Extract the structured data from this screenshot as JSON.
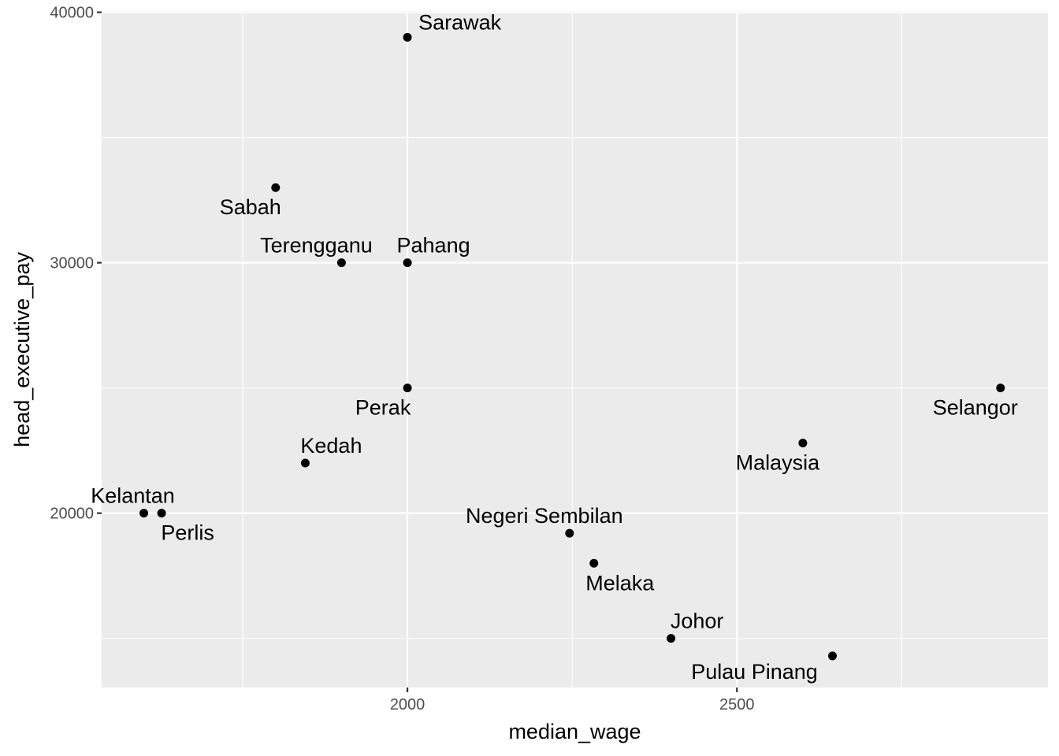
{
  "chart_data": {
    "type": "scatter",
    "xlabel": "median_wage",
    "ylabel": "head_executive_pay",
    "xlim": [
      1536,
      2972
    ],
    "ylim": [
      13040,
      40050
    ],
    "x_ticks": [
      2000,
      2500
    ],
    "x_tick_labels": [
      "2000",
      "2500"
    ],
    "y_ticks": [
      20000,
      30000,
      40000
    ],
    "y_tick_labels": [
      "20000",
      "30000",
      "40000"
    ],
    "grid": true,
    "points": [
      {
        "label": "Sarawak",
        "x": 2000,
        "y": 39000
      },
      {
        "label": "Sabah",
        "x": 1800,
        "y": 33000
      },
      {
        "label": "Terengganu",
        "x": 1900,
        "y": 30000
      },
      {
        "label": "Pahang",
        "x": 2000,
        "y": 30000
      },
      {
        "label": "Perak",
        "x": 2000,
        "y": 25000
      },
      {
        "label": "Selangor",
        "x": 2900,
        "y": 25000
      },
      {
        "label": "Malaysia",
        "x": 2600,
        "y": 22800
      },
      {
        "label": "Kedah",
        "x": 1845,
        "y": 22000
      },
      {
        "label": "Kelantan",
        "x": 1600,
        "y": 20000
      },
      {
        "label": "Perlis",
        "x": 1627,
        "y": 20000
      },
      {
        "label": "Negeri Sembilan",
        "x": 2246,
        "y": 19200
      },
      {
        "label": "Melaka",
        "x": 2283,
        "y": 18000
      },
      {
        "label": "Johor",
        "x": 2400,
        "y": 15000
      },
      {
        "label": "Pulau Pinang",
        "x": 2645,
        "y": 14300
      }
    ]
  }
}
